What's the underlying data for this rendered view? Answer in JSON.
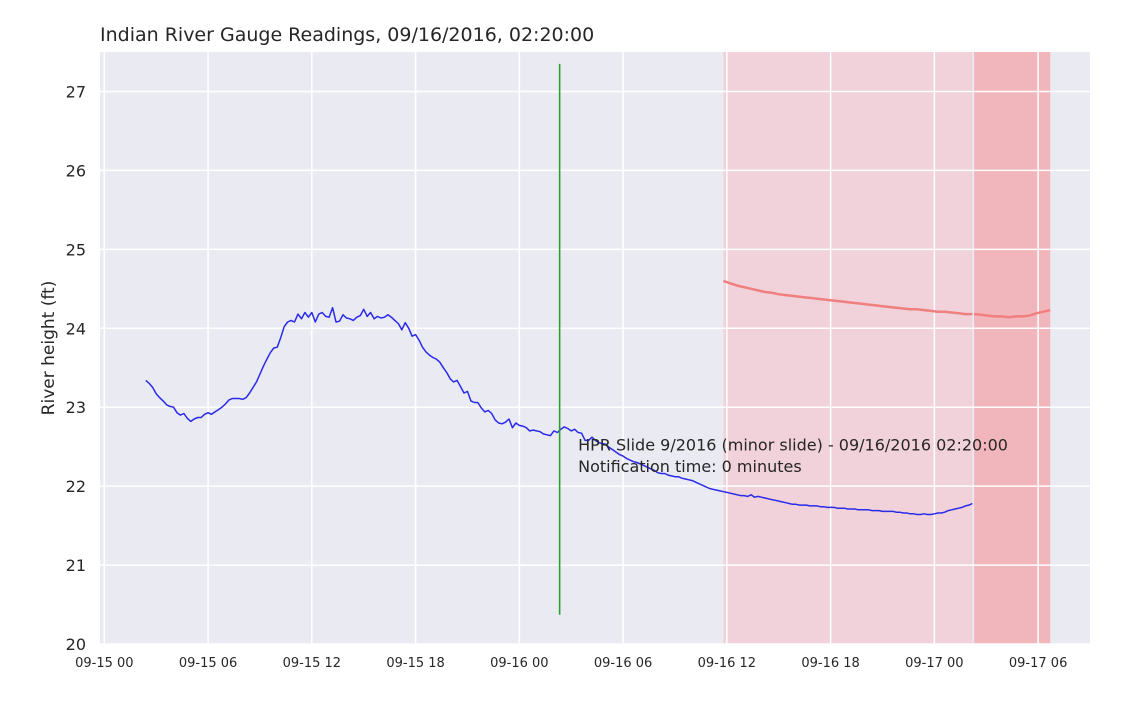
{
  "chart_data": {
    "type": "line",
    "title": "Indian River Gauge Readings, 09/16/2016, 02:20:00",
    "xlabel": "",
    "ylabel": "River height (ft)",
    "ylim": [
      20,
      27.5
    ],
    "yticks": [
      "20",
      "21",
      "22",
      "23",
      "24",
      "25",
      "26",
      "27"
    ],
    "xlim_hours": [
      -0.25,
      57.0
    ],
    "xticks": [
      {
        "label": "09-15 00",
        "hours": 0
      },
      {
        "label": "09-15 06",
        "hours": 6
      },
      {
        "label": "09-15 12",
        "hours": 12
      },
      {
        "label": "09-15 18",
        "hours": 18
      },
      {
        "label": "09-16 00",
        "hours": 24
      },
      {
        "label": "09-16 06",
        "hours": 30
      },
      {
        "label": "09-16 12",
        "hours": 36
      },
      {
        "label": "09-16 18",
        "hours": 42
      },
      {
        "label": "09-17 00",
        "hours": 48
      },
      {
        "label": "09-17 06",
        "hours": 54
      }
    ],
    "grid": true,
    "colors": {
      "background": "#eaeaf2",
      "grid": "#ffffff",
      "observed": "#2a2aeb",
      "forecast": "#f08080",
      "event": "#2ca02c",
      "band_light": "#f4c5cc",
      "band_dark": "#f2a7ae"
    },
    "series": [
      {
        "kind": "observed",
        "points": [
          [
            2.4,
            23.34
          ],
          [
            2.6,
            23.3
          ],
          [
            2.8,
            23.25
          ],
          [
            3.0,
            23.17
          ],
          [
            3.2,
            23.12
          ],
          [
            3.4,
            23.08
          ],
          [
            3.6,
            23.03
          ],
          [
            3.8,
            23.01
          ],
          [
            4.0,
            23.0
          ],
          [
            4.2,
            22.93
          ],
          [
            4.4,
            22.9
          ],
          [
            4.6,
            22.92
          ],
          [
            4.8,
            22.86
          ],
          [
            5.0,
            22.82
          ],
          [
            5.2,
            22.85
          ],
          [
            5.4,
            22.87
          ],
          [
            5.6,
            22.87
          ],
          [
            5.8,
            22.91
          ],
          [
            6.0,
            22.93
          ],
          [
            6.2,
            22.91
          ],
          [
            6.4,
            22.94
          ],
          [
            6.6,
            22.97
          ],
          [
            6.8,
            23.0
          ],
          [
            7.0,
            23.04
          ],
          [
            7.2,
            23.09
          ],
          [
            7.4,
            23.11
          ],
          [
            7.6,
            23.11
          ],
          [
            7.8,
            23.11
          ],
          [
            8.0,
            23.1
          ],
          [
            8.2,
            23.12
          ],
          [
            8.4,
            23.18
          ],
          [
            8.6,
            23.25
          ],
          [
            8.8,
            23.32
          ],
          [
            9.0,
            23.42
          ],
          [
            9.2,
            23.52
          ],
          [
            9.4,
            23.61
          ],
          [
            9.6,
            23.69
          ],
          [
            9.8,
            23.75
          ],
          [
            10.0,
            23.76
          ],
          [
            10.2,
            23.88
          ],
          [
            10.4,
            24.02
          ],
          [
            10.6,
            24.08
          ],
          [
            10.8,
            24.1
          ],
          [
            11.0,
            24.08
          ],
          [
            11.2,
            24.18
          ],
          [
            11.4,
            24.12
          ],
          [
            11.6,
            24.2
          ],
          [
            11.8,
            24.14
          ],
          [
            12.0,
            24.2
          ],
          [
            12.2,
            24.08
          ],
          [
            12.4,
            24.18
          ],
          [
            12.6,
            24.2
          ],
          [
            12.8,
            24.15
          ],
          [
            13.0,
            24.14
          ],
          [
            13.2,
            24.26
          ],
          [
            13.4,
            24.08
          ],
          [
            13.6,
            24.09
          ],
          [
            13.8,
            24.17
          ],
          [
            14.0,
            24.13
          ],
          [
            14.2,
            24.12
          ],
          [
            14.4,
            24.1
          ],
          [
            14.6,
            24.14
          ],
          [
            14.8,
            24.16
          ],
          [
            15.0,
            24.24
          ],
          [
            15.2,
            24.15
          ],
          [
            15.4,
            24.2
          ],
          [
            15.6,
            24.12
          ],
          [
            15.8,
            24.15
          ],
          [
            16.0,
            24.13
          ],
          [
            16.2,
            24.14
          ],
          [
            16.4,
            24.17
          ],
          [
            16.6,
            24.14
          ],
          [
            16.8,
            24.1
          ],
          [
            17.0,
            24.06
          ],
          [
            17.2,
            23.98
          ],
          [
            17.4,
            24.07
          ],
          [
            17.6,
            24.0
          ],
          [
            17.8,
            23.9
          ],
          [
            18.0,
            23.92
          ],
          [
            18.2,
            23.85
          ],
          [
            18.4,
            23.76
          ],
          [
            18.6,
            23.7
          ],
          [
            18.8,
            23.66
          ],
          [
            19.0,
            23.63
          ],
          [
            19.2,
            23.61
          ],
          [
            19.4,
            23.57
          ],
          [
            19.6,
            23.5
          ],
          [
            19.8,
            23.44
          ],
          [
            20.0,
            23.36
          ],
          [
            20.2,
            23.32
          ],
          [
            20.4,
            23.34
          ],
          [
            20.6,
            23.26
          ],
          [
            20.8,
            23.18
          ],
          [
            21.0,
            23.2
          ],
          [
            21.2,
            23.08
          ],
          [
            21.4,
            23.06
          ],
          [
            21.6,
            23.06
          ],
          [
            21.8,
            22.99
          ],
          [
            22.0,
            22.94
          ],
          [
            22.2,
            22.96
          ],
          [
            22.4,
            22.92
          ],
          [
            22.6,
            22.84
          ],
          [
            22.8,
            22.8
          ],
          [
            23.0,
            22.79
          ],
          [
            23.2,
            22.81
          ],
          [
            23.4,
            22.85
          ],
          [
            23.6,
            22.74
          ],
          [
            23.8,
            22.8
          ],
          [
            24.0,
            22.77
          ],
          [
            24.2,
            22.76
          ],
          [
            24.4,
            22.74
          ],
          [
            24.6,
            22.7
          ],
          [
            24.8,
            22.71
          ],
          [
            25.0,
            22.7
          ],
          [
            25.2,
            22.69
          ],
          [
            25.4,
            22.66
          ],
          [
            25.6,
            22.65
          ],
          [
            25.8,
            22.64
          ],
          [
            26.0,
            22.7
          ],
          [
            26.2,
            22.68
          ],
          [
            26.4,
            22.72
          ],
          [
            26.6,
            22.75
          ],
          [
            26.8,
            22.73
          ],
          [
            27.0,
            22.7
          ],
          [
            27.2,
            22.72
          ],
          [
            27.4,
            22.68
          ],
          [
            27.6,
            22.67
          ],
          [
            27.8,
            22.58
          ],
          [
            28.0,
            22.58
          ],
          [
            28.2,
            22.62
          ],
          [
            28.4,
            22.58
          ],
          [
            28.6,
            22.55
          ],
          [
            28.8,
            22.54
          ],
          [
            29.0,
            22.53
          ],
          [
            29.2,
            22.49
          ],
          [
            29.4,
            22.46
          ],
          [
            29.6,
            22.43
          ],
          [
            29.8,
            22.4
          ],
          [
            30.0,
            22.38
          ],
          [
            30.2,
            22.35
          ],
          [
            30.4,
            22.33
          ],
          [
            30.6,
            22.31
          ],
          [
            30.8,
            22.3
          ],
          [
            31.0,
            22.28
          ],
          [
            31.2,
            22.26
          ],
          [
            31.4,
            22.24
          ],
          [
            31.6,
            22.22
          ],
          [
            31.8,
            22.2
          ],
          [
            32.0,
            22.17
          ],
          [
            32.2,
            22.16
          ],
          [
            32.4,
            22.16
          ],
          [
            32.6,
            22.14
          ],
          [
            32.8,
            22.13
          ],
          [
            33.0,
            22.12
          ],
          [
            33.2,
            22.12
          ],
          [
            33.4,
            22.1
          ],
          [
            33.6,
            22.09
          ],
          [
            33.8,
            22.08
          ],
          [
            34.0,
            22.07
          ],
          [
            34.2,
            22.05
          ],
          [
            34.4,
            22.03
          ],
          [
            34.6,
            22.01
          ],
          [
            34.8,
            21.99
          ],
          [
            35.0,
            21.97
          ],
          [
            35.2,
            21.96
          ],
          [
            35.4,
            21.95
          ],
          [
            35.6,
            21.94
          ],
          [
            35.8,
            21.93
          ],
          [
            36.0,
            21.92
          ],
          [
            36.2,
            21.91
          ],
          [
            36.4,
            21.9
          ],
          [
            36.6,
            21.89
          ],
          [
            36.8,
            21.88
          ],
          [
            37.0,
            21.88
          ],
          [
            37.2,
            21.87
          ],
          [
            37.4,
            21.89
          ],
          [
            37.6,
            21.86
          ],
          [
            37.8,
            21.87
          ],
          [
            38.0,
            21.86
          ],
          [
            38.2,
            21.85
          ],
          [
            38.4,
            21.84
          ],
          [
            38.6,
            21.83
          ],
          [
            38.8,
            21.82
          ],
          [
            39.0,
            21.81
          ],
          [
            39.2,
            21.8
          ],
          [
            39.4,
            21.79
          ],
          [
            39.6,
            21.78
          ],
          [
            39.8,
            21.77
          ],
          [
            40.0,
            21.77
          ],
          [
            40.2,
            21.76
          ],
          [
            40.4,
            21.76
          ],
          [
            40.6,
            21.76
          ],
          [
            40.8,
            21.75
          ],
          [
            41.0,
            21.75
          ],
          [
            41.2,
            21.75
          ],
          [
            41.4,
            21.74
          ],
          [
            41.6,
            21.74
          ],
          [
            41.8,
            21.73
          ],
          [
            42.0,
            21.73
          ],
          [
            42.2,
            21.73
          ],
          [
            42.4,
            21.72
          ],
          [
            42.6,
            21.72
          ],
          [
            42.8,
            21.72
          ],
          [
            43.0,
            21.71
          ],
          [
            43.2,
            21.71
          ],
          [
            43.4,
            21.71
          ],
          [
            43.6,
            21.7
          ],
          [
            43.8,
            21.7
          ],
          [
            44.0,
            21.7
          ],
          [
            44.2,
            21.7
          ],
          [
            44.4,
            21.69
          ],
          [
            44.6,
            21.69
          ],
          [
            44.8,
            21.69
          ],
          [
            45.0,
            21.68
          ],
          [
            45.2,
            21.68
          ],
          [
            45.4,
            21.68
          ],
          [
            45.6,
            21.68
          ],
          [
            45.8,
            21.67
          ],
          [
            46.0,
            21.67
          ],
          [
            46.2,
            21.66
          ],
          [
            46.4,
            21.66
          ],
          [
            46.6,
            21.65
          ],
          [
            46.8,
            21.65
          ],
          [
            47.0,
            21.64
          ],
          [
            47.2,
            21.64
          ],
          [
            47.4,
            21.65
          ],
          [
            47.6,
            21.64
          ],
          [
            47.8,
            21.64
          ],
          [
            48.0,
            21.65
          ],
          [
            48.2,
            21.66
          ],
          [
            48.4,
            21.66
          ],
          [
            48.6,
            21.67
          ],
          [
            48.8,
            21.69
          ],
          [
            49.0,
            21.7
          ],
          [
            49.2,
            21.71
          ],
          [
            49.4,
            21.72
          ],
          [
            49.6,
            21.73
          ],
          [
            49.8,
            21.75
          ],
          [
            50.0,
            21.76
          ],
          [
            50.2,
            21.78
          ]
        ]
      },
      {
        "kind": "forecast",
        "points": [
          [
            35.8,
            24.6
          ],
          [
            36.2,
            24.57
          ],
          [
            36.6,
            24.54
          ],
          [
            37.0,
            24.52
          ],
          [
            37.4,
            24.5
          ],
          [
            37.8,
            24.48
          ],
          [
            38.2,
            24.46
          ],
          [
            38.6,
            24.45
          ],
          [
            39.0,
            24.43
          ],
          [
            39.4,
            24.42
          ],
          [
            39.8,
            24.41
          ],
          [
            40.2,
            24.4
          ],
          [
            40.6,
            24.39
          ],
          [
            41.0,
            24.38
          ],
          [
            41.4,
            24.37
          ],
          [
            41.8,
            24.36
          ],
          [
            42.2,
            24.35
          ],
          [
            42.6,
            24.34
          ],
          [
            43.0,
            24.33
          ],
          [
            43.4,
            24.32
          ],
          [
            43.8,
            24.31
          ],
          [
            44.2,
            24.3
          ],
          [
            44.6,
            24.29
          ],
          [
            45.0,
            24.28
          ],
          [
            45.4,
            24.27
          ],
          [
            45.8,
            24.26
          ],
          [
            46.2,
            24.25
          ],
          [
            46.6,
            24.24
          ],
          [
            47.0,
            24.24
          ],
          [
            47.4,
            24.23
          ],
          [
            47.8,
            24.22
          ],
          [
            48.2,
            24.21
          ],
          [
            48.6,
            24.21
          ],
          [
            49.0,
            24.2
          ],
          [
            49.4,
            24.19
          ],
          [
            49.8,
            24.18
          ],
          [
            50.2,
            24.18
          ]
        ]
      },
      {
        "kind": "forecast",
        "points": [
          [
            50.3,
            24.18
          ],
          [
            50.7,
            24.17
          ],
          [
            51.1,
            24.16
          ],
          [
            51.5,
            24.15
          ],
          [
            51.9,
            24.15
          ],
          [
            52.3,
            24.14
          ],
          [
            52.7,
            24.15
          ],
          [
            53.1,
            24.15
          ],
          [
            53.5,
            24.16
          ],
          [
            53.9,
            24.19
          ],
          [
            54.3,
            24.21
          ],
          [
            54.7,
            24.23
          ]
        ]
      }
    ],
    "bands": [
      {
        "kind": "light",
        "x": [
          35.8,
          50.2
        ]
      },
      {
        "kind": "dark",
        "x": [
          50.3,
          54.7
        ]
      }
    ],
    "event_line": {
      "hours": 26.33,
      "ymin": 20.37,
      "ymax": 27.35
    },
    "annotation": {
      "hours": 27.4,
      "y_line1": 22.45,
      "y_line2": 22.18,
      "line1": "HPR Slide 9/2016 (minor slide) - 09/16/2016 02:20:00",
      "line2": "Notification time: 0 minutes"
    }
  }
}
